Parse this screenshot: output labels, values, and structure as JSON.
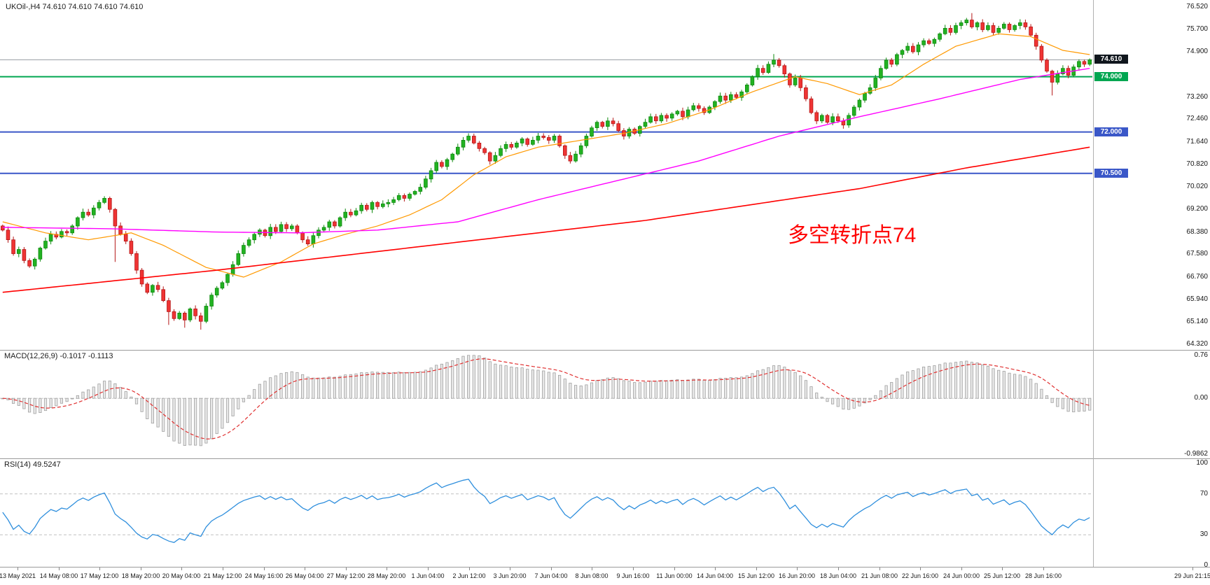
{
  "header": {
    "symbol_title": "UKOil-,H4 74.610 74.610 74.610 74.610"
  },
  "indicators": {
    "macd": {
      "label": "MACD(12,26,9) -0.1017 -0.1113",
      "params": [
        12,
        26,
        9
      ],
      "values": {
        "main": -0.1017,
        "signal": -0.1113
      },
      "axis_labels": [
        {
          "label": "0.76",
          "v": 0.76
        },
        {
          "label": "0.00",
          "v": 0.0
        },
        {
          "label": "-0.9862",
          "v": -0.9862
        }
      ],
      "bar_fill": "#e8e8e8",
      "bar_stroke": "#a0a0a0",
      "signal_color": "#e03030"
    },
    "rsi": {
      "label": "RSI(14) 49.5247",
      "period": 14,
      "value": 49.5247,
      "axis_labels": [
        {
          "label": "100",
          "v": 100
        },
        {
          "label": "70",
          "v": 70
        },
        {
          "label": "30",
          "v": 30
        },
        {
          "label": "0",
          "v": 0
        }
      ],
      "levels": [
        70,
        30
      ],
      "line_color": "#2f8fdd"
    }
  },
  "price_axis": {
    "labels": [
      {
        "label": "76.520",
        "v": 76.52
      },
      {
        "label": "75.700",
        "v": 75.7
      },
      {
        "label": "74.900",
        "v": 74.9
      },
      {
        "label": "73.260",
        "v": 73.26
      },
      {
        "label": "72.460",
        "v": 72.46
      },
      {
        "label": "71.640",
        "v": 71.64
      },
      {
        "label": "70.820",
        "v": 70.82
      },
      {
        "label": "70.020",
        "v": 70.02
      },
      {
        "label": "69.200",
        "v": 69.2
      },
      {
        "label": "68.380",
        "v": 68.38
      },
      {
        "label": "67.580",
        "v": 67.58
      },
      {
        "label": "66.760",
        "v": 66.76
      },
      {
        "label": "65.940",
        "v": 65.94
      },
      {
        "label": "65.140",
        "v": 65.14
      },
      {
        "label": "64.320",
        "v": 64.32
      }
    ],
    "tags": [
      {
        "label": "74.610",
        "v": 74.61,
        "bg": "#10161d",
        "fg": "#ffffff"
      },
      {
        "label": "74.000",
        "v": 74.0,
        "bg": "#00a651",
        "fg": "#ffffff"
      },
      {
        "label": "72.000",
        "v": 72.0,
        "bg": "#3a57c8",
        "fg": "#ffffff"
      },
      {
        "label": "70.500",
        "v": 70.5,
        "bg": "#3a57c8",
        "fg": "#ffffff"
      }
    ]
  },
  "time_axis": {
    "labels": [
      "13 May 2021",
      "14 May 08:00",
      "17 May 12:00",
      "18 May 20:00",
      "20 May 04:00",
      "21 May 12:00",
      "24 May 16:00",
      "26 May 04:00",
      "27 May 12:00",
      "28 May 20:00",
      "1 Jun 04:00",
      "2 Jun 12:00",
      "3 Jun 20:00",
      "7 Jun 04:00",
      "8 Jun 08:00",
      "9 Jun 16:00",
      "11 Jun 00:00",
      "14 Jun 04:00",
      "15 Jun 12:00",
      "16 Jun 20:00",
      "18 Jun 04:00",
      "21 Jun 08:00",
      "22 Jun 16:00",
      "24 Jun 00:00",
      "25 Jun 12:00",
      "28 Jun 16:00",
      "29 Jun 21:15"
    ]
  },
  "chart_data": {
    "type": "candlestick",
    "symbol": "UKOil-",
    "timeframe": "H4",
    "title": "UKOil-,H4",
    "quote_ohlc": [
      74.61,
      74.61,
      74.61,
      74.61
    ],
    "ylim": [
      64.32,
      76.52
    ],
    "x_range": [
      "13 May 2021",
      "29 Jun 2021 21:15"
    ],
    "open_first": 68.6,
    "closes": [
      68.45,
      68.1,
      67.6,
      67.75,
      67.35,
      67.15,
      67.4,
      67.8,
      68.05,
      68.3,
      68.2,
      68.4,
      68.35,
      68.6,
      68.9,
      69.1,
      69.0,
      69.25,
      69.45,
      69.6,
      69.2,
      68.6,
      68.3,
      68.05,
      67.6,
      67.0,
      66.5,
      66.2,
      66.45,
      66.3,
      65.9,
      65.5,
      65.25,
      65.45,
      65.2,
      65.6,
      65.35,
      65.15,
      65.7,
      66.1,
      66.35,
      66.55,
      66.85,
      67.2,
      67.6,
      67.9,
      68.1,
      68.3,
      68.45,
      68.25,
      68.55,
      68.4,
      68.65,
      68.5,
      68.6,
      68.35,
      68.1,
      67.95,
      68.25,
      68.45,
      68.55,
      68.75,
      68.6,
      68.9,
      69.1,
      69.0,
      69.15,
      69.35,
      69.2,
      69.45,
      69.3,
      69.4,
      69.45,
      69.55,
      69.7,
      69.6,
      69.75,
      69.85,
      70.0,
      70.3,
      70.6,
      70.9,
      70.75,
      71.0,
      71.2,
      71.45,
      71.7,
      71.85,
      71.6,
      71.4,
      71.25,
      70.95,
      71.15,
      71.4,
      71.55,
      71.45,
      71.6,
      71.75,
      71.55,
      71.7,
      71.85,
      71.8,
      71.7,
      71.85,
      71.5,
      71.15,
      70.95,
      71.2,
      71.5,
      71.85,
      72.15,
      72.35,
      72.2,
      72.4,
      72.3,
      72.05,
      71.85,
      72.1,
      71.95,
      72.2,
      72.35,
      72.55,
      72.4,
      72.6,
      72.5,
      72.65,
      72.75,
      72.55,
      72.8,
      72.95,
      72.85,
      72.7,
      72.9,
      73.1,
      73.3,
      73.15,
      73.35,
      73.25,
      73.45,
      73.7,
      74.0,
      74.3,
      74.15,
      74.45,
      74.6,
      74.4,
      74.1,
      73.7,
      73.95,
      73.6,
      73.2,
      72.7,
      72.4,
      72.6,
      72.35,
      72.55,
      72.4,
      72.25,
      72.6,
      72.9,
      73.15,
      73.4,
      73.6,
      73.95,
      74.3,
      74.6,
      74.45,
      74.8,
      74.95,
      75.1,
      74.9,
      75.15,
      75.3,
      75.2,
      75.35,
      75.55,
      75.75,
      75.6,
      75.85,
      75.95,
      76.05,
      75.8,
      75.95,
      75.7,
      75.85,
      75.6,
      75.75,
      75.9,
      75.7,
      75.85,
      75.95,
      75.8,
      75.5,
      75.1,
      74.6,
      74.2,
      73.8,
      74.1,
      74.3,
      74.05,
      74.35,
      74.55,
      74.45,
      74.61
    ],
    "wick_overrides": {
      "21": {
        "low": 67.3
      },
      "31": {
        "low": 65.02
      },
      "34": {
        "low": 64.92
      },
      "37": {
        "low": 64.85
      },
      "144": {
        "high": 74.82
      },
      "181": {
        "high": 76.3
      },
      "196": {
        "low": 73.32
      }
    },
    "bull_fill": "#22b222",
    "bull_stroke": "#0e8a0e",
    "bear_fill": "#ef3434",
    "bear_stroke": "#b51717",
    "horizontal_lines": [
      {
        "price": 74.61,
        "color": "#9aa0a6",
        "width": 1,
        "note": "current price line"
      },
      {
        "price": 74.0,
        "color": "#00a651",
        "width": 2,
        "note": "green support/resistance"
      },
      {
        "price": 72.0,
        "color": "#3a57c8",
        "width": 2,
        "note": "blue support"
      },
      {
        "price": 70.5,
        "color": "#3a57c8",
        "width": 2,
        "note": "blue support"
      }
    ],
    "moving_averages": [
      {
        "name": "ma-fast-orange",
        "color": "#ff9900",
        "width": 1.2,
        "anchors": [
          [
            0,
            68.75
          ],
          [
            8,
            68.35
          ],
          [
            16,
            68.1
          ],
          [
            24,
            68.35
          ],
          [
            30,
            67.9
          ],
          [
            38,
            67.1
          ],
          [
            45,
            66.75
          ],
          [
            52,
            67.3
          ],
          [
            58,
            67.95
          ],
          [
            64,
            68.3
          ],
          [
            70,
            68.6
          ],
          [
            76,
            69.0
          ],
          [
            82,
            69.55
          ],
          [
            88,
            70.45
          ],
          [
            94,
            71.1
          ],
          [
            100,
            71.45
          ],
          [
            108,
            71.7
          ],
          [
            116,
            71.95
          ],
          [
            124,
            72.3
          ],
          [
            132,
            72.8
          ],
          [
            140,
            73.45
          ],
          [
            148,
            74.0
          ],
          [
            154,
            73.75
          ],
          [
            160,
            73.35
          ],
          [
            166,
            73.7
          ],
          [
            172,
            74.45
          ],
          [
            178,
            75.1
          ],
          [
            186,
            75.55
          ],
          [
            192,
            75.45
          ],
          [
            198,
            74.95
          ],
          [
            203,
            74.8
          ]
        ]
      },
      {
        "name": "ma-mid-magenta",
        "color": "#ff00ff",
        "width": 1.4,
        "anchors": [
          [
            0,
            68.55
          ],
          [
            20,
            68.5
          ],
          [
            40,
            68.38
          ],
          [
            55,
            68.35
          ],
          [
            70,
            68.45
          ],
          [
            85,
            68.75
          ],
          [
            100,
            69.55
          ],
          [
            115,
            70.25
          ],
          [
            130,
            70.95
          ],
          [
            145,
            71.85
          ],
          [
            160,
            72.55
          ],
          [
            175,
            73.2
          ],
          [
            190,
            73.9
          ],
          [
            203,
            74.3
          ]
        ]
      },
      {
        "name": "ma-slow-red",
        "color": "#ff0000",
        "width": 1.6,
        "anchors": [
          [
            0,
            66.2
          ],
          [
            40,
            67.0
          ],
          [
            80,
            67.9
          ],
          [
            120,
            68.8
          ],
          [
            160,
            69.95
          ],
          [
            180,
            70.7
          ],
          [
            203,
            71.45
          ]
        ]
      }
    ],
    "annotation": {
      "text": "多空转折点74",
      "color": "#ff0000"
    },
    "sub_panels": [
      {
        "type": "bar",
        "name": "MACD(12,26,9)",
        "derived_from": "closes",
        "ylim": [
          -0.9862,
          0.76
        ],
        "current": [
          -0.1017,
          -0.1113
        ]
      },
      {
        "type": "line",
        "name": "RSI(14)",
        "derived_from": "closes",
        "ylim": [
          0,
          100
        ],
        "levels": [
          70,
          30
        ],
        "current": 49.5247
      }
    ]
  }
}
